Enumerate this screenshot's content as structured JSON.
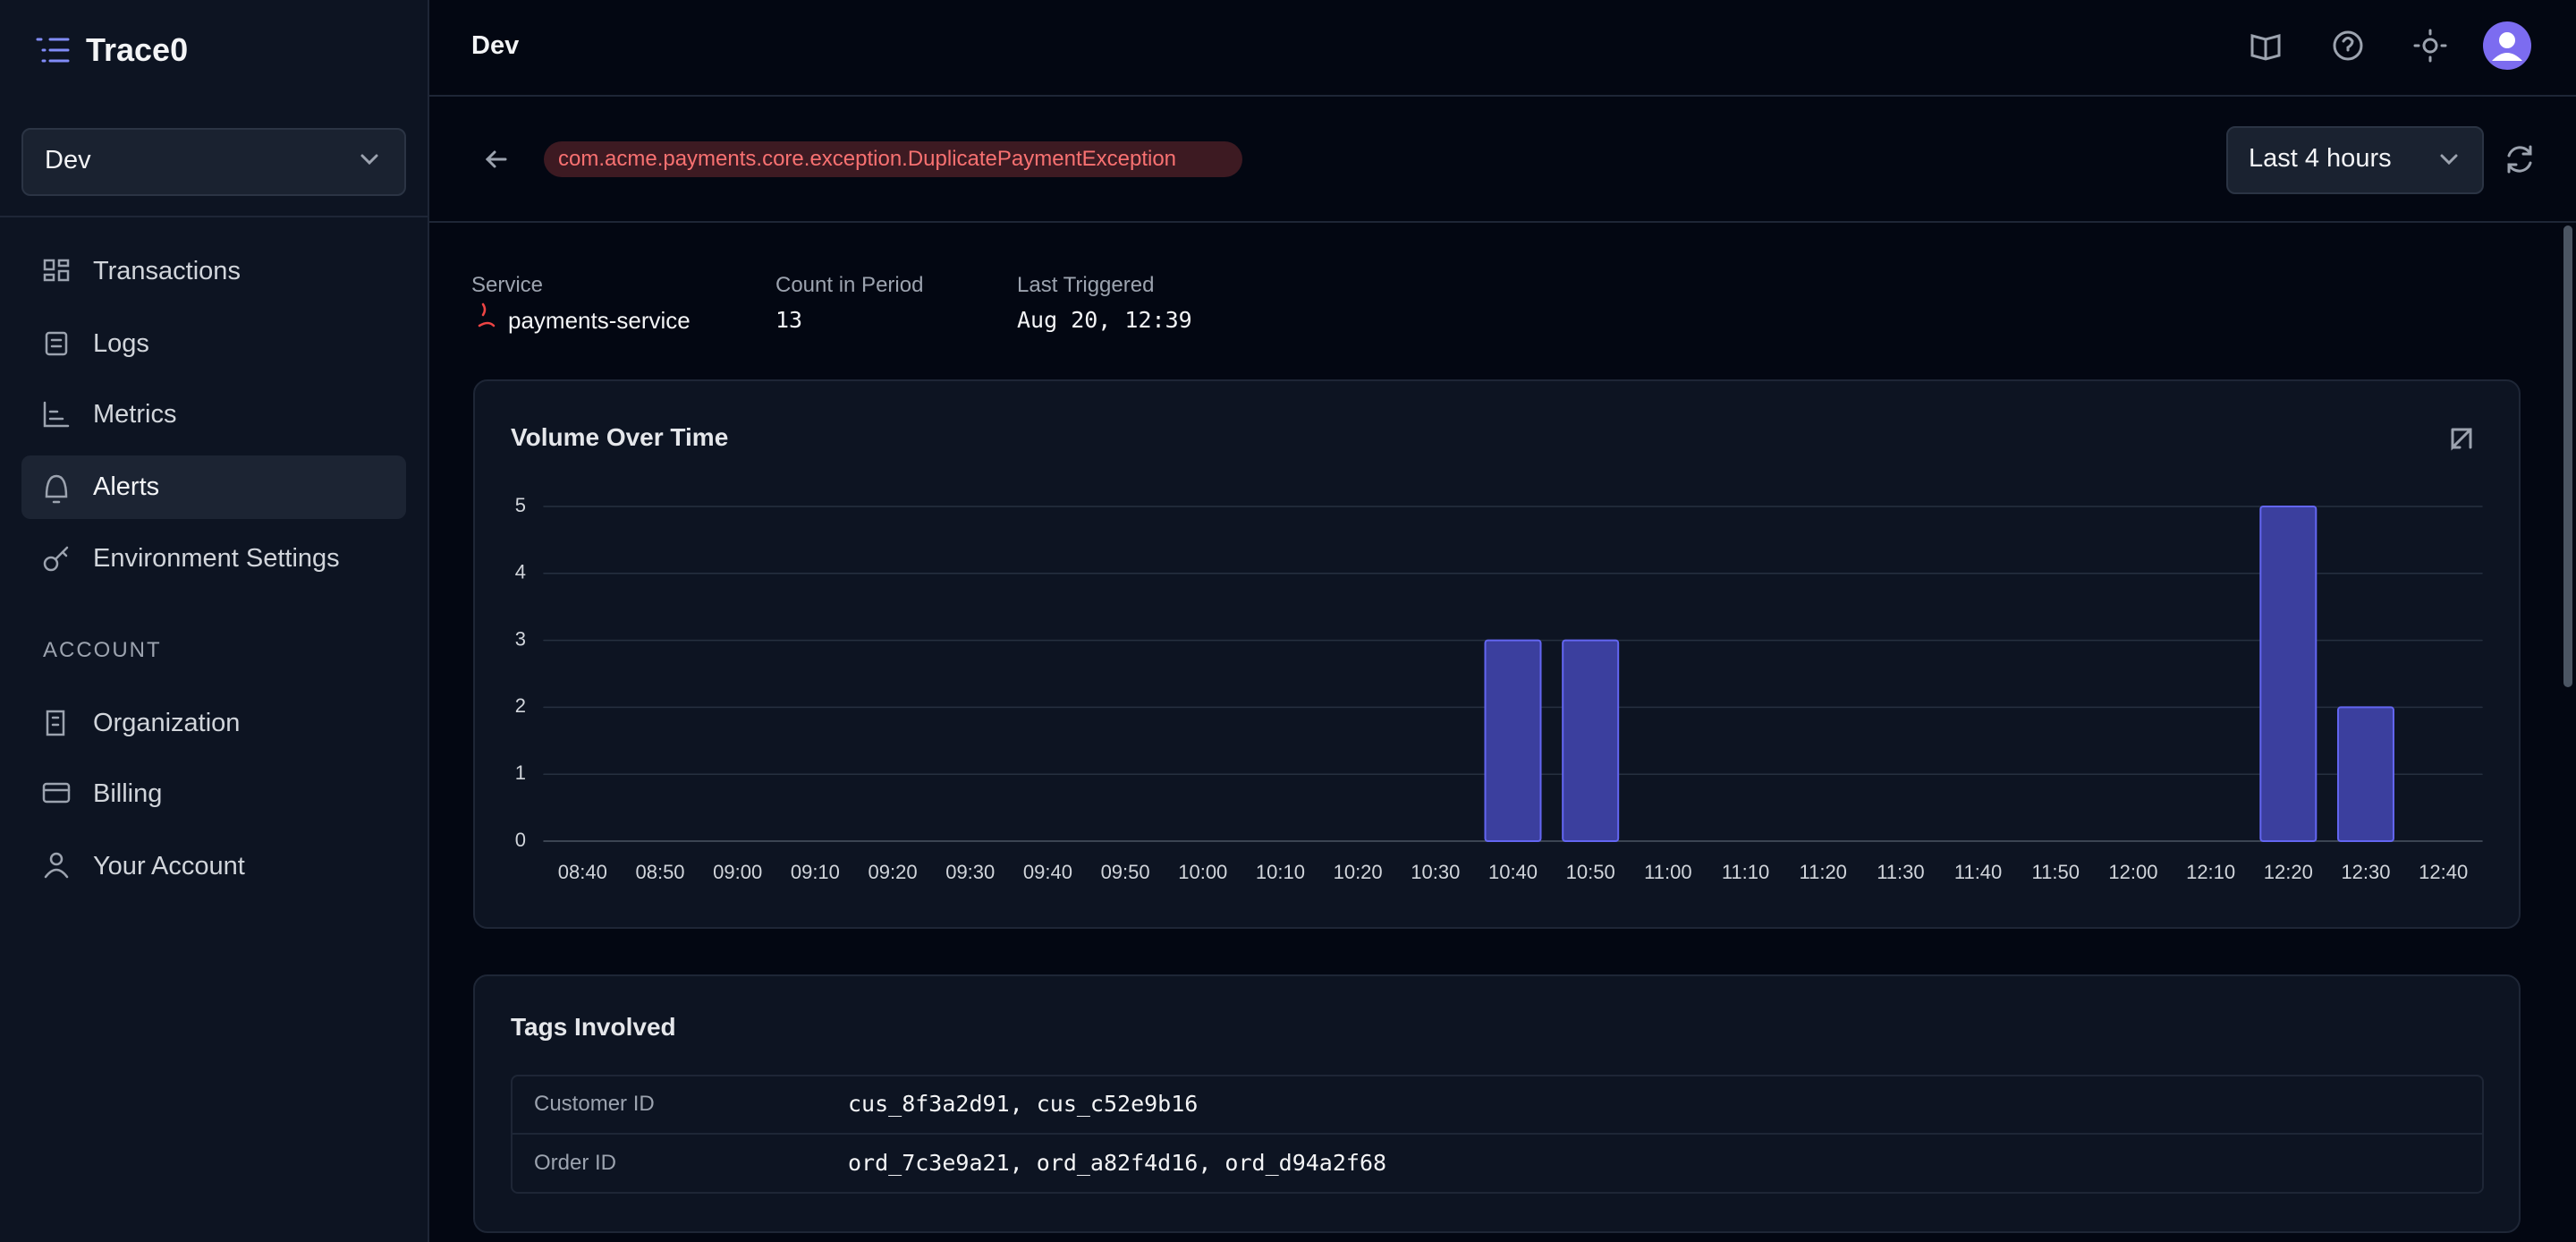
{
  "sidebar": {
    "brand": "Trace0",
    "environment": "Dev",
    "nav": [
      "Transactions",
      "Logs",
      "Metrics",
      "Alerts",
      "Environment Settings"
    ],
    "section": "ACCOUNT",
    "account_nav": [
      "Organization",
      "Billing",
      "Your Account"
    ]
  },
  "header": {
    "title": "Dev"
  },
  "toolbar": {
    "exception": "com.acme.payments.core.exception.DuplicatePaymentException",
    "time_range": "Last 4 hours"
  },
  "stats": [
    {
      "label": "Service",
      "value": "payments-service"
    },
    {
      "label": "Count in Period",
      "value": 13
    },
    {
      "label": "Last Triggered",
      "value": "Aug 20, 12:39"
    }
  ],
  "chart_data": {
    "type": "bar",
    "title": "Volume Over Time",
    "categories": [
      "08:40",
      "08:50",
      "09:00",
      "09:10",
      "09:20",
      "09:30",
      "09:40",
      "09:50",
      "10:00",
      "10:10",
      "10:20",
      "10:30",
      "10:40",
      "10:50",
      "11:00",
      "11:10",
      "11:20",
      "11:30",
      "11:40",
      "11:50",
      "12:00",
      "12:10",
      "12:20",
      "12:30",
      "12:40"
    ],
    "values": [
      0,
      0,
      0,
      0,
      0,
      0,
      0,
      0,
      0,
      0,
      0,
      0,
      3,
      3,
      0,
      0,
      0,
      0,
      0,
      0,
      0,
      0,
      5,
      2,
      0
    ],
    "color": "#3b3f9e",
    "ylim": [
      0,
      5
    ],
    "yticks": [
      0,
      1,
      2,
      3,
      4,
      5
    ],
    "grid": true
  },
  "tags": {
    "title": "Tags Involved",
    "rows": [
      [
        "Customer ID",
        "cus_8f3a2d91, cus_c52e9b16"
      ],
      [
        "Order ID",
        "ord_7c3e9a21, ord_a82f4d16, ord_d94a2f68"
      ]
    ]
  }
}
